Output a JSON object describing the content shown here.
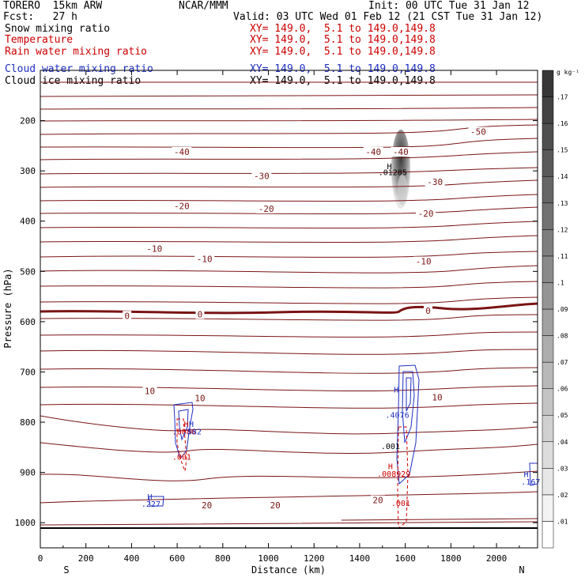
{
  "header": {
    "model": "TORERO  15km ARW",
    "center": "NCAR/MMM",
    "init": "Init: 00 UTC Tue 31 Jan 12",
    "fcst": "Fcst:   27 h",
    "valid": "Valid: 03 UTC Wed 01 Feb 12 (21 CST Tue 31 Jan 12)"
  },
  "fields": [
    {
      "name": "Snow mixing ratio",
      "xy": "XY= 149.0,  5.1 to 149.0,149.8",
      "color": "#000000"
    },
    {
      "name": "Temperature",
      "xy": "XY= 149.0,  5.1 to 149.0,149.8",
      "color": "#cc0000"
    },
    {
      "name": "Rain water mixing ratio",
      "xy": "XY= 149.0,  5.1 to 149.0,149.8",
      "color": "#cc0000"
    },
    {
      "name": "Cloud water mixing ratio",
      "xy": "XY= 149.0,  5.1 to 149.0,149.8",
      "color": "#1f2fbf"
    },
    {
      "name": "Cloud ice mixing ratio",
      "xy": "XY= 149.0,  5.1 to 149.0,149.8",
      "color": "#000000"
    }
  ],
  "colorbar": {
    "unit": "g kg⁻¹",
    "levels": [
      0.01,
      0.02,
      0.03,
      0.04,
      0.05,
      0.06,
      0.07,
      0.08,
      0.09,
      0.1,
      0.11,
      0.12,
      0.13,
      0.14,
      0.15,
      0.16,
      0.17
    ],
    "labels": [
      ".01",
      ".02",
      ".03",
      ".04",
      ".05",
      ".06",
      ".07",
      ".08",
      ".09",
      ".1",
      ".11",
      ".12",
      ".13",
      ".14",
      ".15",
      ".16",
      ".17"
    ]
  },
  "chart_data": {
    "type": "cross-section contour",
    "xlabel": "Distance (km)",
    "ylabel": "Pressure (hPa)",
    "xlim": [
      0,
      2180
    ],
    "ylim": [
      1050,
      100
    ],
    "x_ticks": [
      0,
      200,
      400,
      600,
      800,
      1000,
      1200,
      1400,
      1600,
      1800,
      2000
    ],
    "x_tick_labels": [
      "0",
      "200",
      "400",
      "600",
      "800",
      "1000",
      "1200",
      "1400",
      "1600",
      "1800",
      "2000"
    ],
    "y_ticks": [
      200,
      300,
      400,
      500,
      600,
      700,
      800,
      900,
      1000
    ],
    "y_tick_labels": [
      "200",
      "300",
      "400",
      "500",
      "600",
      "700",
      "800",
      "900",
      "1000"
    ],
    "left_end_label": "S",
    "right_end_label": "N",
    "isotherm_levels_labeled": [
      -50,
      -40,
      -30,
      -20,
      -10,
      0,
      10,
      20
    ],
    "temperature_labels": [
      {
        "x": 1920,
        "p": 222,
        "text": "-50"
      },
      {
        "x": 620,
        "p": 262,
        "text": "-40"
      },
      {
        "x": 1460,
        "p": 262,
        "text": "-40"
      },
      {
        "x": 1580,
        "p": 262,
        "text": "-40"
      },
      {
        "x": 970,
        "p": 310,
        "text": "-30"
      },
      {
        "x": 1730,
        "p": 322,
        "text": "-30"
      },
      {
        "x": 620,
        "p": 370,
        "text": "-20"
      },
      {
        "x": 990,
        "p": 375,
        "text": "-20"
      },
      {
        "x": 1690,
        "p": 385,
        "text": "-20"
      },
      {
        "x": 500,
        "p": 455,
        "text": "-10"
      },
      {
        "x": 720,
        "p": 475,
        "text": "-10"
      },
      {
        "x": 1680,
        "p": 480,
        "text": "-10"
      },
      {
        "x": 380,
        "p": 588,
        "text": "0"
      },
      {
        "x": 700,
        "p": 585,
        "text": "0"
      },
      {
        "x": 1700,
        "p": 578,
        "text": "0"
      },
      {
        "x": 480,
        "p": 738,
        "text": "10"
      },
      {
        "x": 700,
        "p": 752,
        "text": "10"
      },
      {
        "x": 1740,
        "p": 750,
        "text": "10"
      },
      {
        "x": 730,
        "p": 965,
        "text": "20"
      },
      {
        "x": 1030,
        "p": 965,
        "text": "20"
      },
      {
        "x": 1480,
        "p": 955,
        "text": "20"
      }
    ],
    "maxima_labels": [
      {
        "x": 1530,
        "p": 290,
        "text": "H",
        "color": "#000000"
      },
      {
        "x": 1545,
        "p": 302,
        "text": ".01285",
        "color": "#000000"
      },
      {
        "x": 640,
        "p": 803,
        "text": "H",
        "color": "#cc0000"
      },
      {
        "x": 662,
        "p": 803,
        "text": "H",
        "color": "#1f2fbf"
      },
      {
        "x": 630,
        "p": 818,
        "text": ".0086",
        "color": "#cc0000"
      },
      {
        "x": 665,
        "p": 818,
        "text": ".582",
        "color": "#1f2fbf"
      },
      {
        "x": 620,
        "p": 868,
        "text": ".001",
        "color": "#cc0000"
      },
      {
        "x": 1560,
        "p": 735,
        "text": "H",
        "color": "#1f2fbf"
      },
      {
        "x": 1565,
        "p": 785,
        "text": ".4076",
        "color": "#1f2fbf"
      },
      {
        "x": 1535,
        "p": 847,
        "text": ".001",
        "color": "#000000"
      },
      {
        "x": 1535,
        "p": 887,
        "text": "H",
        "color": "#cc0000"
      },
      {
        "x": 1550,
        "p": 902,
        "text": ".008929",
        "color": "#cc0000"
      },
      {
        "x": 1580,
        "p": 960,
        "text": ".001",
        "color": "#cc0000"
      },
      {
        "x": 480,
        "p": 948,
        "text": "H",
        "color": "#1f2fbf"
      },
      {
        "x": 485,
        "p": 962,
        "text": ".227",
        "color": "#1f2fbf"
      },
      {
        "x": 2130,
        "p": 903,
        "text": "H",
        "color": "#1f2fbf"
      },
      {
        "x": 2150,
        "p": 918,
        "text": ".167",
        "color": "#1f2fbf"
      }
    ]
  }
}
